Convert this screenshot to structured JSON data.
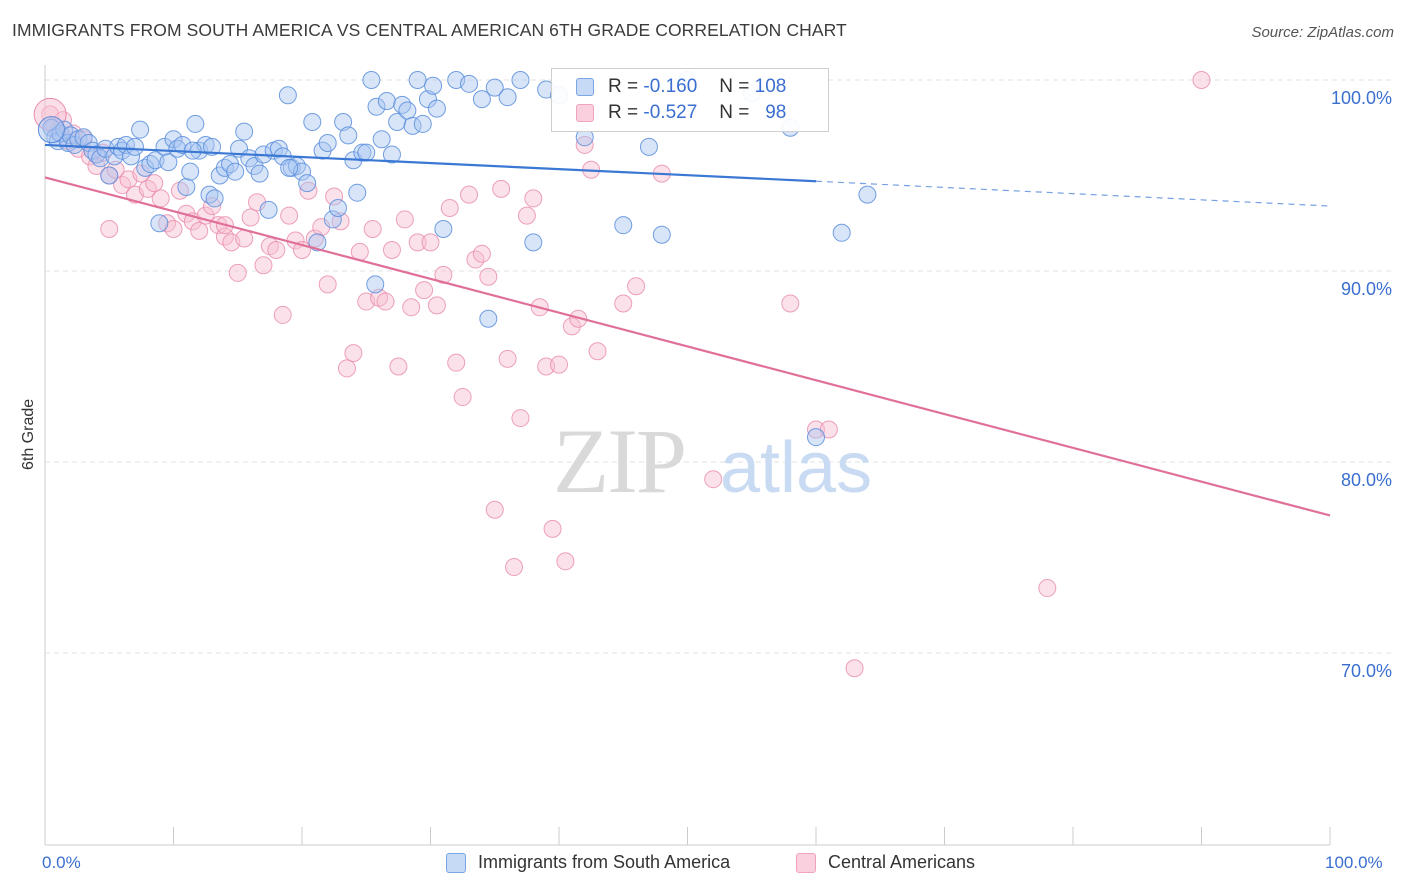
{
  "title": "IMMIGRANTS FROM SOUTH AMERICA VS CENTRAL AMERICAN 6TH GRADE CORRELATION CHART",
  "source": "Source: ZipAtlas.com",
  "watermark": {
    "zip": "ZIP",
    "atlas": "atlas"
  },
  "legend": {
    "r_label": "R =",
    "n_label": "N =",
    "rows": [
      {
        "r": "-0.160",
        "n": "108",
        "color": "#7aa6e6"
      },
      {
        "r": "-0.527",
        "n": "98",
        "color": "#f0a3bd"
      }
    ]
  },
  "bottom_legend": [
    "Immigrants from South America",
    "Central Americans"
  ],
  "x_axis": {
    "min_label": "0.0%",
    "max_label": "100.0%"
  },
  "y_axis": {
    "label": "6th Grade",
    "ticks": [
      "100.0%",
      "90.0%",
      "80.0%",
      "70.0%"
    ]
  },
  "colors": {
    "blue": "#3a78d4",
    "pink": "#e0709a",
    "blue_fill": "#a9c6f2",
    "pink_fill": "#f7bfd1",
    "grid": "#e2e2e2",
    "axis_text": "#3a6fd0"
  },
  "chart_data": {
    "type": "scatter",
    "title": "IMMIGRANTS FROM SOUTH AMERICA VS CENTRAL AMERICAN 6TH GRADE CORRELATION CHART",
    "xlabel": "",
    "ylabel": "6th Grade",
    "xlim": [
      0,
      100
    ],
    "ylim": [
      59,
      101.5
    ],
    "series": [
      {
        "name": "Immigrants from South America",
        "trend": {
          "x": [
            0,
            60,
            100
          ],
          "y": [
            96.6,
            94.7,
            93.4
          ],
          "solid_until": 60
        },
        "points": [
          [
            0.5,
            97.5
          ],
          [
            0.8,
            97
          ],
          [
            1,
            96.8
          ],
          [
            1.2,
            97.2
          ],
          [
            1.5,
            97.4
          ],
          [
            1.8,
            96.7
          ],
          [
            2,
            97.1
          ],
          [
            2.3,
            96.6
          ],
          [
            2.6,
            96.9
          ],
          [
            3,
            97
          ],
          [
            3.4,
            96.7
          ],
          [
            3.7,
            96.3
          ],
          [
            4,
            96.1
          ],
          [
            4.3,
            95.9
          ],
          [
            4.7,
            96.4
          ],
          [
            5,
            95
          ],
          [
            5.4,
            96
          ],
          [
            5.7,
            96.5
          ],
          [
            6,
            96.3
          ],
          [
            6.3,
            96.6
          ],
          [
            6.7,
            96
          ],
          [
            7,
            96.5
          ],
          [
            7.4,
            97.4
          ],
          [
            7.8,
            95.4
          ],
          [
            8.2,
            95.6
          ],
          [
            8.6,
            95.8
          ],
          [
            8.9,
            92.5
          ],
          [
            9.3,
            96.5
          ],
          [
            9.6,
            95.7
          ],
          [
            10,
            96.9
          ],
          [
            10.3,
            96.4
          ],
          [
            10.7,
            96.6
          ],
          [
            11,
            94.4
          ],
          [
            11.3,
            95.2
          ],
          [
            11.7,
            97.7
          ],
          [
            12,
            96.3
          ],
          [
            12.5,
            96.6
          ],
          [
            12.8,
            94
          ],
          [
            13.2,
            93.8
          ],
          [
            13.6,
            95
          ],
          [
            14,
            95.4
          ],
          [
            14.4,
            95.6
          ],
          [
            14.8,
            95.2
          ],
          [
            15.1,
            96.4
          ],
          [
            15.5,
            97.3
          ],
          [
            15.9,
            95.9
          ],
          [
            16.3,
            95.5
          ],
          [
            16.7,
            95.1
          ],
          [
            17,
            96.1
          ],
          [
            17.4,
            93.2
          ],
          [
            17.8,
            96.3
          ],
          [
            18.2,
            96.4
          ],
          [
            18.5,
            96
          ],
          [
            18.9,
            99.2
          ],
          [
            19.2,
            95.4
          ],
          [
            19.6,
            95.5
          ],
          [
            20,
            95.2
          ],
          [
            20.4,
            94.6
          ],
          [
            20.8,
            97.8
          ],
          [
            21.2,
            91.5
          ],
          [
            21.6,
            96.3
          ],
          [
            22,
            96.7
          ],
          [
            22.4,
            92.7
          ],
          [
            22.8,
            93.3
          ],
          [
            23.2,
            97.8
          ],
          [
            23.6,
            97.1
          ],
          [
            24,
            95.8
          ],
          [
            24.3,
            94.1
          ],
          [
            24.7,
            96.2
          ],
          [
            25,
            96.2
          ],
          [
            25.4,
            100
          ],
          [
            25.8,
            98.6
          ],
          [
            26.2,
            96.9
          ],
          [
            26.6,
            98.9
          ],
          [
            27,
            96.1
          ],
          [
            27.4,
            97.8
          ],
          [
            27.8,
            98.7
          ],
          [
            28.2,
            98.4
          ],
          [
            28.6,
            97.6
          ],
          [
            29,
            100
          ],
          [
            29.4,
            97.7
          ],
          [
            29.8,
            99
          ],
          [
            30.2,
            99.7
          ],
          [
            31,
            92.2
          ],
          [
            32,
            100
          ],
          [
            33,
            99.8
          ],
          [
            34,
            99
          ],
          [
            35,
            99.6
          ],
          [
            36,
            99.1
          ],
          [
            37,
            100
          ],
          [
            38,
            91.5
          ],
          [
            39,
            99.5
          ],
          [
            40,
            99.2
          ],
          [
            42,
            97
          ],
          [
            45,
            92.4
          ],
          [
            47,
            96.5
          ],
          [
            48,
            91.9
          ],
          [
            50,
            100
          ],
          [
            55,
            99.3
          ],
          [
            58,
            97.5
          ],
          [
            60,
            81.3
          ],
          [
            62,
            92
          ],
          [
            64,
            94
          ],
          [
            34.5,
            87.5
          ],
          [
            19,
            95.4
          ],
          [
            11.5,
            96.3
          ],
          [
            13,
            96.5
          ],
          [
            25.7,
            89.3
          ],
          [
            30.5,
            98.5
          ]
        ]
      },
      {
        "name": "Central Americans",
        "trend": {
          "x": [
            0,
            100
          ],
          "y": [
            94.9,
            77.2
          ]
        },
        "points": [
          [
            0.4,
            98.2
          ],
          [
            0.7,
            97.6
          ],
          [
            1,
            97.3
          ],
          [
            1.4,
            97.9
          ],
          [
            1.8,
            96.8
          ],
          [
            2.2,
            97.2
          ],
          [
            2.6,
            96.4
          ],
          [
            3,
            96.9
          ],
          [
            3.5,
            96
          ],
          [
            4,
            95.5
          ],
          [
            4.5,
            96.2
          ],
          [
            5,
            95
          ],
          [
            5.5,
            95.3
          ],
          [
            6,
            94.5
          ],
          [
            6.5,
            94.8
          ],
          [
            7,
            94
          ],
          [
            7.5,
            95.1
          ],
          [
            8,
            94.3
          ],
          [
            8.5,
            94.6
          ],
          [
            9,
            93.8
          ],
          [
            9.5,
            92.5
          ],
          [
            10,
            92.2
          ],
          [
            10.5,
            94.2
          ],
          [
            11,
            93
          ],
          [
            11.5,
            92.6
          ],
          [
            12,
            92.1
          ],
          [
            12.5,
            92.9
          ],
          [
            13,
            93.4
          ],
          [
            13.5,
            92.4
          ],
          [
            14,
            91.8
          ],
          [
            14.5,
            91.5
          ],
          [
            15,
            89.9
          ],
          [
            15.5,
            91.7
          ],
          [
            16,
            92.8
          ],
          [
            16.5,
            93.6
          ],
          [
            17,
            90.3
          ],
          [
            17.5,
            91.3
          ],
          [
            18,
            91.1
          ],
          [
            18.5,
            87.7
          ],
          [
            19,
            92.9
          ],
          [
            19.5,
            91.6
          ],
          [
            20,
            91.1
          ],
          [
            20.5,
            94.2
          ],
          [
            21,
            91.7
          ],
          [
            21.5,
            92.3
          ],
          [
            22,
            89.3
          ],
          [
            22.5,
            93.9
          ],
          [
            23,
            92.6
          ],
          [
            23.5,
            84.9
          ],
          [
            24,
            85.7
          ],
          [
            24.5,
            91
          ],
          [
            25,
            88.4
          ],
          [
            25.5,
            92.2
          ],
          [
            26,
            88.6
          ],
          [
            26.5,
            88.4
          ],
          [
            27,
            91.1
          ],
          [
            27.5,
            85
          ],
          [
            28,
            92.7
          ],
          [
            28.5,
            88.1
          ],
          [
            29,
            91.5
          ],
          [
            29.5,
            89
          ],
          [
            30,
            91.5
          ],
          [
            30.5,
            88.2
          ],
          [
            31,
            89.8
          ],
          [
            31.5,
            93.3
          ],
          [
            32,
            85.2
          ],
          [
            32.5,
            83.4
          ],
          [
            33,
            94
          ],
          [
            33.5,
            90.6
          ],
          [
            34,
            90.9
          ],
          [
            34.5,
            89.7
          ],
          [
            35,
            77.5
          ],
          [
            35.5,
            94.3
          ],
          [
            36,
            85.4
          ],
          [
            36.5,
            74.5
          ],
          [
            37,
            82.3
          ],
          [
            37.5,
            92.9
          ],
          [
            38,
            93.8
          ],
          [
            38.5,
            88.1
          ],
          [
            39,
            85
          ],
          [
            39.5,
            76.5
          ],
          [
            40,
            85.1
          ],
          [
            40.5,
            74.8
          ],
          [
            41,
            87.1
          ],
          [
            41.5,
            87.5
          ],
          [
            42,
            96.6
          ],
          [
            42.5,
            95.3
          ],
          [
            43,
            85.8
          ],
          [
            45,
            88.3
          ],
          [
            46,
            89.2
          ],
          [
            48,
            95.1
          ],
          [
            52,
            79.1
          ],
          [
            58,
            88.3
          ],
          [
            60,
            81.7
          ],
          [
            61,
            81.7
          ],
          [
            63,
            69.2
          ],
          [
            78,
            73.4
          ],
          [
            90,
            100
          ],
          [
            5,
            92.2
          ],
          [
            14,
            92.4
          ]
        ]
      }
    ]
  }
}
